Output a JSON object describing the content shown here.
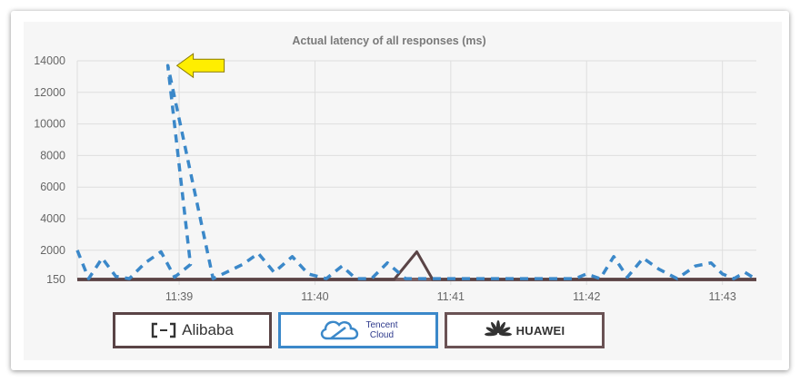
{
  "chart_data": {
    "type": "line",
    "title": "Actual latency of all responses (ms)",
    "xlabel": "",
    "ylabel": "",
    "x_ticks": [
      "11:39",
      "11:40",
      "11:41",
      "11:42",
      "11:43"
    ],
    "y_ticks": [
      150,
      2000,
      4000,
      6000,
      8000,
      10000,
      12000,
      14000
    ],
    "ylim": [
      150,
      14000
    ],
    "xlim": [
      "11:38:15",
      "11:43:15"
    ],
    "grid": true,
    "series": [
      {
        "name": "Alibaba",
        "color": "#5a4446",
        "style": "solid",
        "points": [
          [
            "11:38:15",
            150
          ],
          [
            "11:40:35",
            150
          ],
          [
            "11:40:45",
            1900
          ],
          [
            "11:40:52",
            150
          ],
          [
            "11:43:15",
            150
          ]
        ]
      },
      {
        "name": "Tencent Cloud",
        "color": "#3b88c9",
        "style": "dashed",
        "points": [
          [
            "11:38:15",
            2000
          ],
          [
            "11:38:20",
            200
          ],
          [
            "11:38:26",
            1500
          ],
          [
            "11:38:32",
            350
          ],
          [
            "11:38:38",
            200
          ],
          [
            "11:38:45",
            1200
          ],
          [
            "11:38:52",
            1900
          ],
          [
            "11:38:58",
            300
          ],
          [
            "11:39:05",
            1100
          ],
          [
            "11:38:55",
            13700
          ],
          [
            "11:39:15",
            200
          ],
          [
            "11:39:28",
            1100
          ],
          [
            "11:39:35",
            1800
          ],
          [
            "11:39:42",
            600
          ],
          [
            "11:39:50",
            1600
          ],
          [
            "11:39:57",
            500
          ],
          [
            "11:40:05",
            200
          ],
          [
            "11:40:12",
            1000
          ],
          [
            "11:40:18",
            200
          ],
          [
            "11:40:25",
            200
          ],
          [
            "11:40:32",
            1200
          ],
          [
            "11:40:40",
            200
          ],
          [
            "11:40:50",
            200
          ],
          [
            "11:41:05",
            200
          ],
          [
            "11:41:12",
            200
          ],
          [
            "11:41:25",
            200
          ],
          [
            "11:41:32",
            200
          ],
          [
            "11:41:40",
            200
          ],
          [
            "11:41:48",
            200
          ],
          [
            "11:41:55",
            200
          ],
          [
            "11:42:00",
            500
          ],
          [
            "11:42:06",
            200
          ],
          [
            "11:42:12",
            1600
          ],
          [
            "11:42:18",
            300
          ],
          [
            "11:42:25",
            1500
          ],
          [
            "11:42:32",
            800
          ],
          [
            "11:42:40",
            200
          ],
          [
            "11:42:48",
            1000
          ],
          [
            "11:42:55",
            1200
          ],
          [
            "11:43:00",
            500
          ],
          [
            "11:43:05",
            200
          ],
          [
            "11:43:10",
            600
          ],
          [
            "11:43:15",
            150
          ]
        ]
      },
      {
        "name": "HUAWEI",
        "color": "#7a6062",
        "style": "solid",
        "points": [
          [
            "11:38:15",
            150
          ],
          [
            "11:43:15",
            150
          ]
        ]
      }
    ],
    "annotations": [
      {
        "type": "arrow",
        "color": "#ffee00",
        "points_to": [
          "11:38:55",
          13700
        ]
      }
    ]
  },
  "legend": {
    "alibaba": {
      "label": "Alibaba"
    },
    "tencent": {
      "line1": "Tencent",
      "line2": "Cloud"
    },
    "huawei": {
      "label": "HUAWEI"
    }
  }
}
